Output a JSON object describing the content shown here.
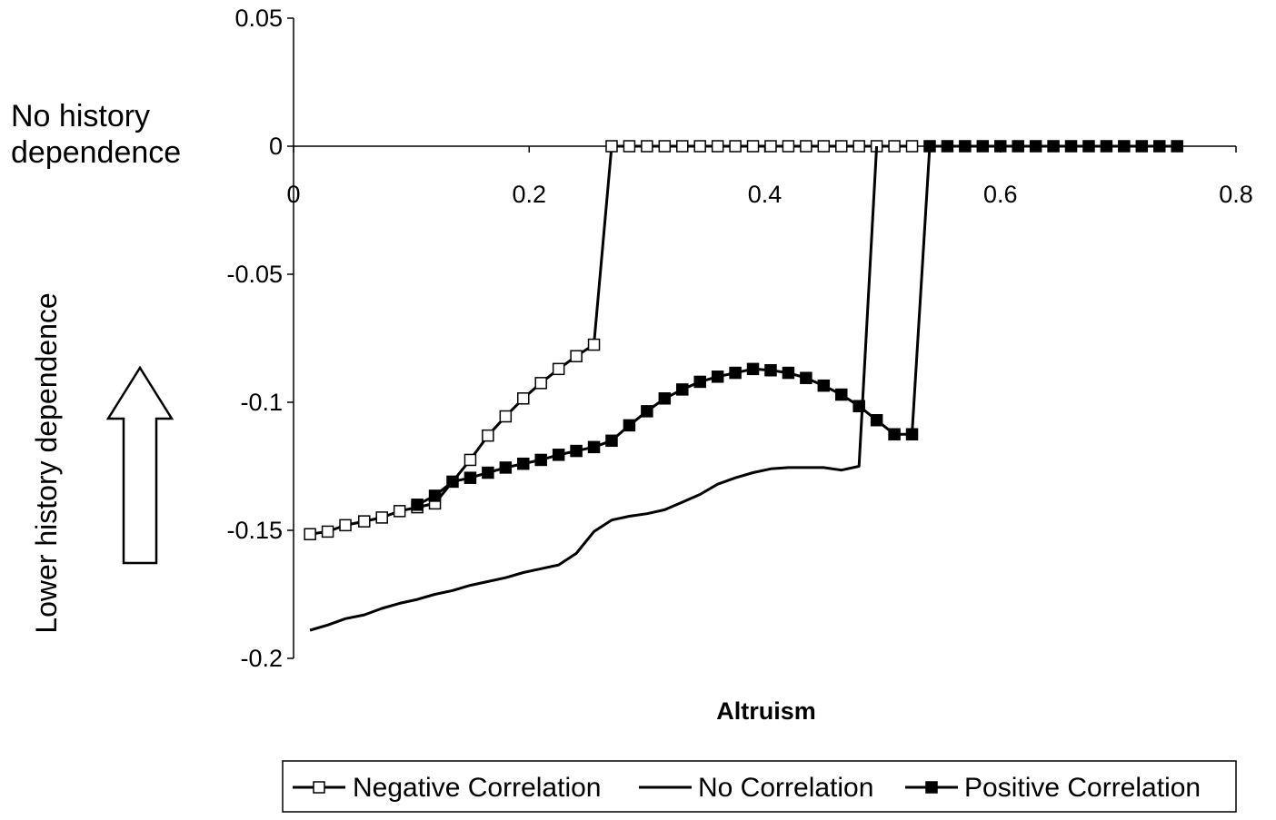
{
  "chart_data": {
    "type": "line",
    "title": "",
    "xlabel": "Altruism",
    "ylabel": "Lower history dependence",
    "top_annotation": [
      "No history",
      "dependence"
    ],
    "xlim": [
      0,
      0.8
    ],
    "ylim": [
      -0.2,
      0.05
    ],
    "x_ticks": [
      0,
      0.2,
      0.4,
      0.6,
      0.8
    ],
    "x_tick_labels": [
      "0",
      "0.2",
      "0.4",
      "0.6",
      "0.8"
    ],
    "y_ticks": [
      0.05,
      0,
      -0.05,
      -0.1,
      -0.15,
      -0.2
    ],
    "y_tick_labels": [
      "0.05",
      "0",
      "-0.05",
      "-0.1",
      "-0.15",
      "-0.2"
    ],
    "grid": false,
    "legend_position": "bottom",
    "series": [
      {
        "name": "Negative Correlation",
        "marker": "open-square",
        "color": "#000000",
        "x": [
          0.014,
          0.029,
          0.044,
          0.06,
          0.075,
          0.09,
          0.105,
          0.12,
          0.15,
          0.165,
          0.18,
          0.195,
          0.21,
          0.225,
          0.24,
          0.255,
          0.27,
          0.285,
          0.3,
          0.315,
          0.33,
          0.345,
          0.36,
          0.375,
          0.39,
          0.405,
          0.42,
          0.435,
          0.45,
          0.465,
          0.48,
          0.495,
          0.51,
          0.525
        ],
        "y": [
          -0.1515,
          -0.1505,
          -0.148,
          -0.1465,
          -0.145,
          -0.1425,
          -0.141,
          -0.1395,
          -0.1225,
          -0.113,
          -0.1055,
          -0.0985,
          -0.0925,
          -0.087,
          -0.082,
          -0.0775,
          0,
          0,
          0,
          0,
          0,
          0,
          0,
          0,
          0,
          0,
          0,
          0,
          0,
          0,
          0,
          0,
          0,
          0
        ]
      },
      {
        "name": "No Correlation",
        "marker": "none",
        "color": "#000000",
        "x": [
          0.014,
          0.029,
          0.044,
          0.06,
          0.075,
          0.09,
          0.105,
          0.12,
          0.135,
          0.15,
          0.165,
          0.18,
          0.195,
          0.21,
          0.225,
          0.24,
          0.255,
          0.27,
          0.285,
          0.3,
          0.315,
          0.33,
          0.345,
          0.36,
          0.375,
          0.39,
          0.405,
          0.42,
          0.435,
          0.45,
          0.465,
          0.48,
          0.495
        ],
        "y": [
          -0.189,
          -0.187,
          -0.1845,
          -0.183,
          -0.1805,
          -0.1785,
          -0.177,
          -0.175,
          -0.1735,
          -0.1715,
          -0.17,
          -0.1685,
          -0.1665,
          -0.165,
          -0.1635,
          -0.159,
          -0.1505,
          -0.146,
          -0.1445,
          -0.1435,
          -0.142,
          -0.139,
          -0.136,
          -0.132,
          -0.1295,
          -0.1275,
          -0.126,
          -0.1255,
          -0.1255,
          -0.1255,
          -0.1265,
          -0.125,
          0
        ]
      },
      {
        "name": "Positive Correlation",
        "marker": "filled-square",
        "color": "#000000",
        "x": [
          0.105,
          0.12,
          0.135,
          0.15,
          0.165,
          0.18,
          0.195,
          0.21,
          0.225,
          0.24,
          0.255,
          0.27,
          0.285,
          0.3,
          0.315,
          0.33,
          0.345,
          0.36,
          0.375,
          0.39,
          0.405,
          0.42,
          0.435,
          0.45,
          0.465,
          0.48,
          0.495,
          0.51,
          0.525,
          0.54,
          0.555,
          0.57,
          0.585,
          0.6,
          0.615,
          0.63,
          0.645,
          0.66,
          0.675,
          0.69,
          0.705,
          0.72,
          0.735,
          0.75
        ],
        "y": [
          -0.14,
          -0.1365,
          -0.131,
          -0.1295,
          -0.1275,
          -0.1255,
          -0.124,
          -0.1225,
          -0.1205,
          -0.119,
          -0.1175,
          -0.115,
          -0.109,
          -0.1035,
          -0.0985,
          -0.095,
          -0.092,
          -0.09,
          -0.0885,
          -0.087,
          -0.0875,
          -0.0885,
          -0.0905,
          -0.0935,
          -0.097,
          -0.1015,
          -0.107,
          -0.1125,
          -0.1125,
          0,
          0,
          0,
          0,
          0,
          0,
          0,
          0,
          0,
          0,
          0,
          0,
          0,
          0,
          0
        ]
      }
    ]
  }
}
